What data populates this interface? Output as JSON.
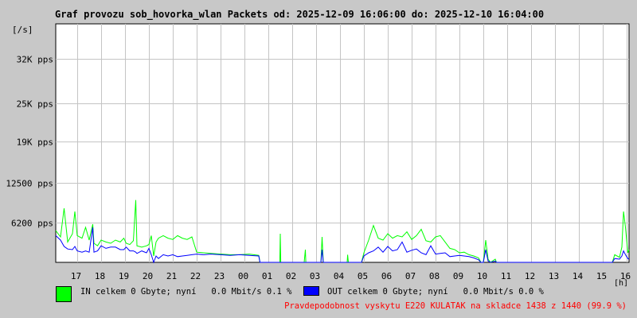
{
  "chart_data": {
    "type": "line",
    "title": "Graf provozu sob_hovorka_wlan Packets od: 2025-12-09 16:06:00 do: 2025-12-10 16:04:00",
    "ylabel": "[/s]",
    "xlabel": "[h]",
    "ylim": [
      0,
      37500
    ],
    "xlim": [
      16.1,
      40.1
    ],
    "grid": true,
    "y_ticks": [
      {
        "value": 6200,
        "label": "6200 pps"
      },
      {
        "value": 12500,
        "label": "12500 pps"
      },
      {
        "value": 19000,
        "label": "19K pps"
      },
      {
        "value": 25000,
        "label": "25K pps"
      },
      {
        "value": 32000,
        "label": "32K pps"
      }
    ],
    "x_ticks": [
      {
        "value": 17,
        "label": "17"
      },
      {
        "value": 18,
        "label": "18"
      },
      {
        "value": 19,
        "label": "19"
      },
      {
        "value": 20,
        "label": "20"
      },
      {
        "value": 21,
        "label": "21"
      },
      {
        "value": 22,
        "label": "22"
      },
      {
        "value": 23,
        "label": "23"
      },
      {
        "value": 24,
        "label": "00"
      },
      {
        "value": 25,
        "label": "01"
      },
      {
        "value": 26,
        "label": "02"
      },
      {
        "value": 27,
        "label": "03"
      },
      {
        "value": 28,
        "label": "04"
      },
      {
        "value": 29,
        "label": "05"
      },
      {
        "value": 30,
        "label": "06"
      },
      {
        "value": 31,
        "label": "07"
      },
      {
        "value": 32,
        "label": "08"
      },
      {
        "value": 33,
        "label": "09"
      },
      {
        "value": 34,
        "label": "10"
      },
      {
        "value": 35,
        "label": "11"
      },
      {
        "value": 36,
        "label": "12"
      },
      {
        "value": 37,
        "label": "13"
      },
      {
        "value": 38,
        "label": "14"
      },
      {
        "value": 39,
        "label": "15"
      },
      {
        "value": 40,
        "label": "16"
      }
    ],
    "series": [
      {
        "name": "IN",
        "color": "#00ff00",
        "points": [
          [
            16.1,
            5000
          ],
          [
            16.3,
            4000
          ],
          [
            16.45,
            8500
          ],
          [
            16.6,
            3200
          ],
          [
            16.8,
            4500
          ],
          [
            16.9,
            8000
          ],
          [
            17.0,
            4200
          ],
          [
            17.2,
            3800
          ],
          [
            17.35,
            5500
          ],
          [
            17.5,
            3500
          ],
          [
            17.65,
            6000
          ],
          [
            17.7,
            3000
          ],
          [
            17.85,
            2600
          ],
          [
            18.0,
            3500
          ],
          [
            18.2,
            3200
          ],
          [
            18.4,
            3000
          ],
          [
            18.6,
            3500
          ],
          [
            18.8,
            3200
          ],
          [
            18.95,
            3800
          ],
          [
            19.05,
            3000
          ],
          [
            19.2,
            2800
          ],
          [
            19.35,
            3400
          ],
          [
            19.45,
            9800
          ],
          [
            19.5,
            2600
          ],
          [
            19.7,
            2400
          ],
          [
            19.9,
            2600
          ],
          [
            20.0,
            2800
          ],
          [
            20.1,
            4200
          ],
          [
            20.2,
            1000
          ],
          [
            20.3,
            3200
          ],
          [
            20.4,
            3800
          ],
          [
            20.6,
            4200
          ],
          [
            20.8,
            3800
          ],
          [
            21.0,
            3600
          ],
          [
            21.2,
            4200
          ],
          [
            21.4,
            3800
          ],
          [
            21.6,
            3600
          ],
          [
            21.8,
            4000
          ],
          [
            22.0,
            1600
          ],
          [
            22.3,
            1500
          ],
          [
            22.6,
            1400
          ],
          [
            23.0,
            1300
          ],
          [
            23.4,
            1200
          ],
          [
            23.8,
            1200
          ],
          [
            24.2,
            1300
          ],
          [
            24.6,
            1100
          ],
          [
            24.65,
            0
          ],
          [
            25.0,
            0
          ],
          [
            25.48,
            0
          ],
          [
            25.5,
            4500
          ],
          [
            25.52,
            0
          ],
          [
            26.0,
            0
          ],
          [
            26.5,
            0
          ],
          [
            26.55,
            2000
          ],
          [
            26.57,
            0
          ],
          [
            27.0,
            0
          ],
          [
            27.2,
            0
          ],
          [
            27.25,
            4000
          ],
          [
            27.3,
            0
          ],
          [
            27.6,
            0
          ],
          [
            28.0,
            0
          ],
          [
            28.3,
            0
          ],
          [
            28.32,
            1200
          ],
          [
            28.35,
            0
          ],
          [
            28.9,
            0
          ],
          [
            29.0,
            1500
          ],
          [
            29.2,
            3500
          ],
          [
            29.4,
            5800
          ],
          [
            29.6,
            3800
          ],
          [
            29.8,
            3500
          ],
          [
            30.0,
            4500
          ],
          [
            30.2,
            3800
          ],
          [
            30.4,
            4200
          ],
          [
            30.6,
            4000
          ],
          [
            30.8,
            4800
          ],
          [
            31.0,
            3600
          ],
          [
            31.2,
            4200
          ],
          [
            31.4,
            5200
          ],
          [
            31.6,
            3400
          ],
          [
            31.8,
            3200
          ],
          [
            32.0,
            4000
          ],
          [
            32.2,
            4200
          ],
          [
            32.4,
            3200
          ],
          [
            32.6,
            2200
          ],
          [
            32.8,
            2000
          ],
          [
            33.0,
            1500
          ],
          [
            33.2,
            1600
          ],
          [
            33.4,
            1200
          ],
          [
            33.6,
            1000
          ],
          [
            33.8,
            700
          ],
          [
            33.9,
            0
          ],
          [
            34.0,
            0
          ],
          [
            34.1,
            3500
          ],
          [
            34.2,
            500
          ],
          [
            34.3,
            0
          ],
          [
            34.5,
            500
          ],
          [
            34.55,
            0
          ],
          [
            35.0,
            0
          ],
          [
            36.0,
            0
          ],
          [
            37.0,
            0
          ],
          [
            38.0,
            0
          ],
          [
            39.0,
            0
          ],
          [
            39.4,
            0
          ],
          [
            39.5,
            1200
          ],
          [
            39.7,
            800
          ],
          [
            39.8,
            2400
          ],
          [
            39.87,
            8000
          ],
          [
            39.95,
            5500
          ],
          [
            40.05,
            1500
          ],
          [
            40.1,
            2000
          ]
        ]
      },
      {
        "name": "OUT",
        "color": "#0000ff",
        "points": [
          [
            16.1,
            4200
          ],
          [
            16.3,
            3500
          ],
          [
            16.45,
            2500
          ],
          [
            16.6,
            2100
          ],
          [
            16.8,
            2000
          ],
          [
            16.9,
            2500
          ],
          [
            17.0,
            1800
          ],
          [
            17.2,
            1600
          ],
          [
            17.35,
            1800
          ],
          [
            17.5,
            1600
          ],
          [
            17.65,
            5500
          ],
          [
            17.7,
            1600
          ],
          [
            17.85,
            1800
          ],
          [
            18.0,
            2600
          ],
          [
            18.2,
            2200
          ],
          [
            18.4,
            2400
          ],
          [
            18.6,
            2400
          ],
          [
            18.8,
            2000
          ],
          [
            18.95,
            2000
          ],
          [
            19.05,
            2400
          ],
          [
            19.2,
            1800
          ],
          [
            19.35,
            1800
          ],
          [
            19.45,
            1600
          ],
          [
            19.5,
            1400
          ],
          [
            19.7,
            1800
          ],
          [
            19.9,
            1500
          ],
          [
            20.0,
            2200
          ],
          [
            20.1,
            1200
          ],
          [
            20.2,
            0
          ],
          [
            20.3,
            1000
          ],
          [
            20.4,
            600
          ],
          [
            20.6,
            1200
          ],
          [
            20.8,
            1000
          ],
          [
            21.0,
            1200
          ],
          [
            21.2,
            900
          ],
          [
            21.4,
            1000
          ],
          [
            21.6,
            1100
          ],
          [
            21.8,
            1200
          ],
          [
            22.0,
            1300
          ],
          [
            22.3,
            1200
          ],
          [
            22.6,
            1300
          ],
          [
            23.0,
            1200
          ],
          [
            23.4,
            1100
          ],
          [
            23.8,
            1200
          ],
          [
            24.2,
            1100
          ],
          [
            24.6,
            1000
          ],
          [
            24.65,
            0
          ],
          [
            25.0,
            0
          ],
          [
            25.48,
            0
          ],
          [
            25.5,
            0
          ],
          [
            25.52,
            0
          ],
          [
            26.0,
            0
          ],
          [
            26.5,
            0
          ],
          [
            26.55,
            0
          ],
          [
            26.57,
            0
          ],
          [
            27.0,
            0
          ],
          [
            27.2,
            0
          ],
          [
            27.25,
            2000
          ],
          [
            27.3,
            0
          ],
          [
            27.6,
            0
          ],
          [
            28.0,
            0
          ],
          [
            28.3,
            0
          ],
          [
            28.32,
            0
          ],
          [
            28.35,
            0
          ],
          [
            28.9,
            0
          ],
          [
            29.0,
            1000
          ],
          [
            29.2,
            1500
          ],
          [
            29.4,
            1800
          ],
          [
            29.6,
            2400
          ],
          [
            29.8,
            1600
          ],
          [
            30.0,
            2500
          ],
          [
            30.2,
            1800
          ],
          [
            30.4,
            2000
          ],
          [
            30.6,
            3200
          ],
          [
            30.8,
            1600
          ],
          [
            31.0,
            1900
          ],
          [
            31.2,
            2100
          ],
          [
            31.4,
            1500
          ],
          [
            31.6,
            1200
          ],
          [
            31.8,
            2600
          ],
          [
            32.0,
            1300
          ],
          [
            32.2,
            1400
          ],
          [
            32.4,
            1500
          ],
          [
            32.6,
            900
          ],
          [
            32.8,
            1000
          ],
          [
            33.0,
            1100
          ],
          [
            33.2,
            1000
          ],
          [
            33.4,
            900
          ],
          [
            33.6,
            700
          ],
          [
            33.8,
            400
          ],
          [
            33.9,
            0
          ],
          [
            34.0,
            0
          ],
          [
            34.1,
            2000
          ],
          [
            34.2,
            200
          ],
          [
            34.3,
            0
          ],
          [
            34.5,
            200
          ],
          [
            34.55,
            0
          ],
          [
            35.0,
            0
          ],
          [
            36.0,
            0
          ],
          [
            37.0,
            0
          ],
          [
            38.0,
            0
          ],
          [
            39.0,
            0
          ],
          [
            39.4,
            0
          ],
          [
            39.5,
            600
          ],
          [
            39.7,
            500
          ],
          [
            39.8,
            1000
          ],
          [
            39.87,
            1800
          ],
          [
            39.95,
            1200
          ],
          [
            40.05,
            600
          ],
          [
            40.1,
            500
          ]
        ]
      }
    ]
  },
  "legend": {
    "in_text": "IN celkem 0 Gbyte; nyní   0.0 Mbit/s 0.1 %",
    "out_text": "OUT celkem 0 Gbyte; nyní   0.0 Mbit/s 0.0 %",
    "in_color": "#00ff00",
    "out_color": "#0000ff"
  },
  "footer": {
    "text": "Pravdepodobnost vyskytu E220 KULATAK na skladce 1438 z 1440 (99.9 %)",
    "color": "#ff0000"
  }
}
